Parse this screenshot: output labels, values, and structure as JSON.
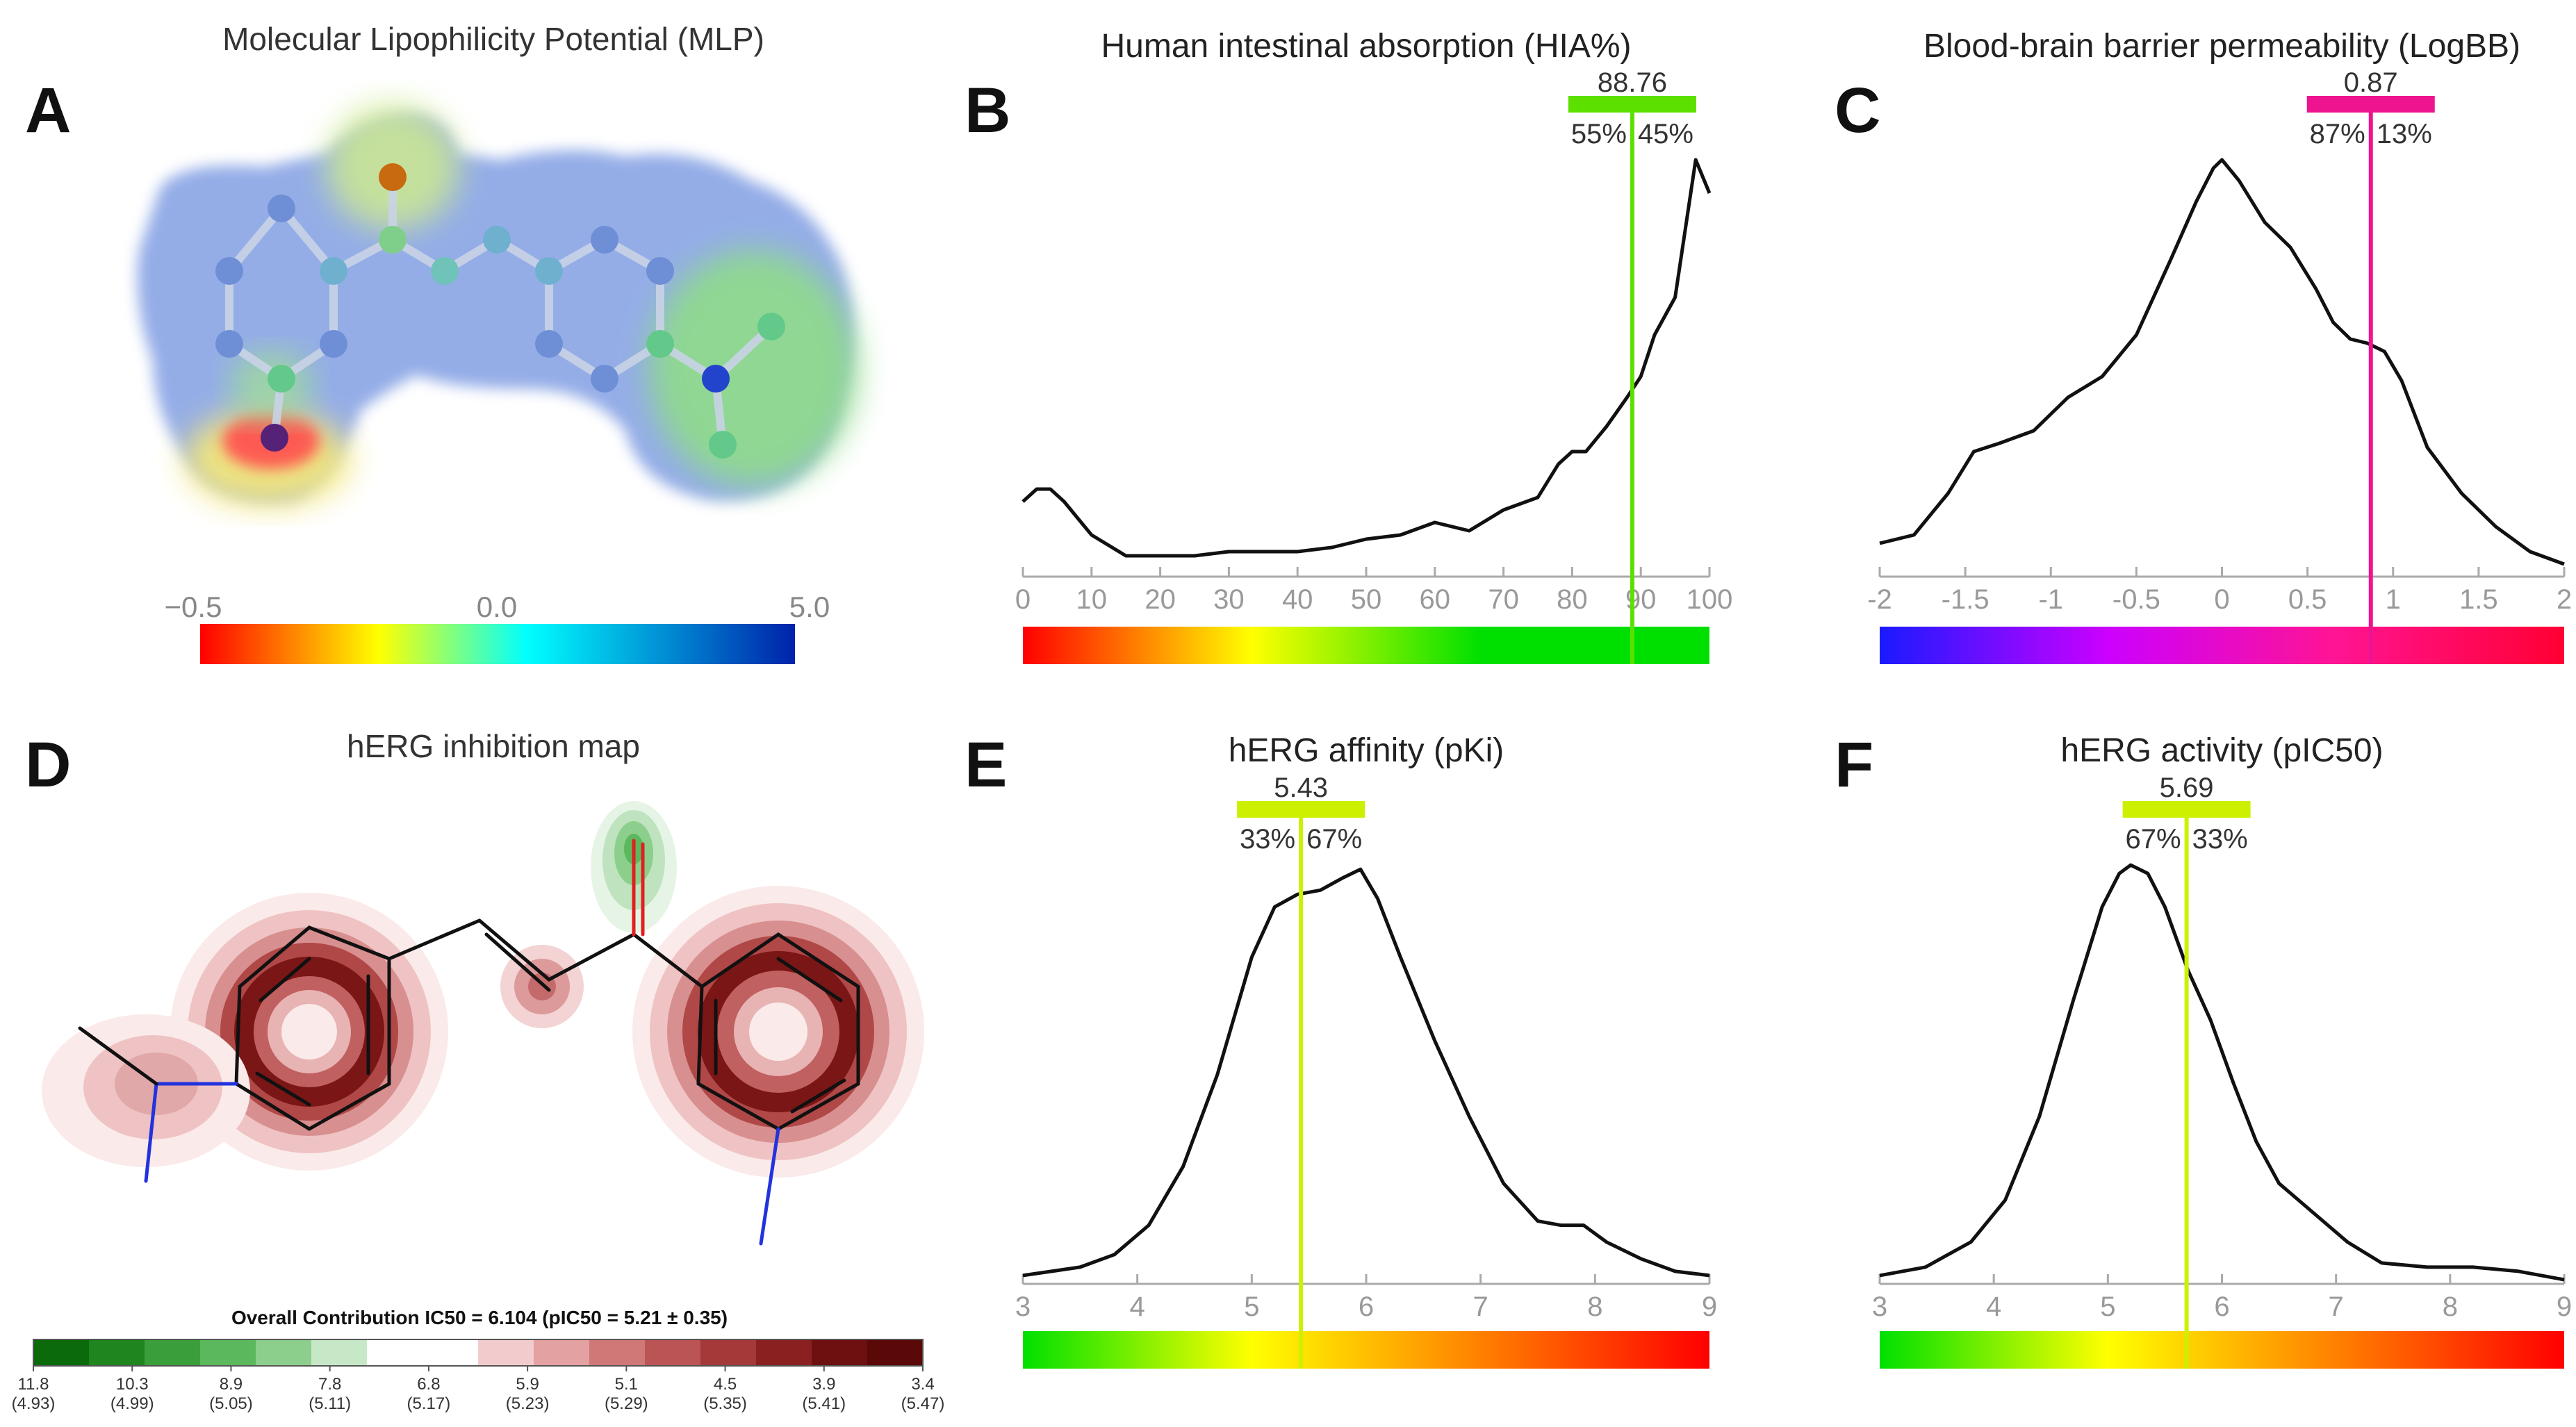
{
  "panel_a": {
    "letter": "A",
    "title": "Molecular Lipophilicity Potential (MLP)",
    "scale_labels": [
      "−0.5",
      "0.0",
      "5.0"
    ],
    "scale_colors": [
      "#ff0000",
      "#ffff00",
      "#00ffff",
      "#0000aa"
    ]
  },
  "panel_d": {
    "letter": "D",
    "title": "hERG inhibition map",
    "legend_title": "Overall Contribution IC50 = 6.104 (pIC50 = 5.21 ± 0.35)",
    "legend_ticks": [
      {
        "top": "11.8",
        "bottom": "(4.93)"
      },
      {
        "top": "10.3",
        "bottom": "(4.99)"
      },
      {
        "top": "8.9",
        "bottom": "(5.05)"
      },
      {
        "top": "7.8",
        "bottom": "(5.11)"
      },
      {
        "top": "6.8",
        "bottom": "(5.17)"
      },
      {
        "top": "5.9",
        "bottom": "(5.23)"
      },
      {
        "top": "5.1",
        "bottom": "(5.29)"
      },
      {
        "top": "4.5",
        "bottom": "(5.35)"
      },
      {
        "top": "3.9",
        "bottom": "(5.41)"
      },
      {
        "top": "3.4",
        "bottom": "(5.47)"
      }
    ],
    "legend_colors": [
      "#0b6b0b",
      "#1f851f",
      "#3a9e3a",
      "#5cb85c",
      "#8ccf8c",
      "#c7e8c7",
      "#ffffff",
      "#ffffff",
      "#f2cccc",
      "#e3a1a1",
      "#d07878",
      "#bb5454",
      "#a53838",
      "#8a2020",
      "#6e1010",
      "#5a0808"
    ]
  },
  "chart_data": [
    {
      "type": "line",
      "letter": "B",
      "title": "Human intestinal absorption (HIA%)",
      "xlabel": "",
      "ylabel": "",
      "xlim": [
        0,
        100
      ],
      "x_ticks": [
        "0",
        "10",
        "20",
        "30",
        "40",
        "50",
        "60",
        "70",
        "80",
        "90",
        "100"
      ],
      "x": [
        0,
        2,
        4,
        6,
        8,
        10,
        15,
        20,
        25,
        30,
        35,
        40,
        45,
        50,
        55,
        60,
        65,
        70,
        75,
        78,
        80,
        82,
        85,
        88,
        90,
        92,
        95,
        98,
        100
      ],
      "y": [
        0.18,
        0.21,
        0.21,
        0.18,
        0.14,
        0.1,
        0.05,
        0.05,
        0.05,
        0.06,
        0.06,
        0.06,
        0.07,
        0.09,
        0.1,
        0.13,
        0.11,
        0.16,
        0.19,
        0.27,
        0.3,
        0.3,
        0.36,
        0.43,
        0.48,
        0.58,
        0.67,
        1.0,
        0.92
      ],
      "ylim": [
        0,
        1.05
      ],
      "marker": {
        "value": "88.76",
        "x": 88.76,
        "left_pct": "55%",
        "right_pct": "45%",
        "color": "#5ce000"
      },
      "color_bar": [
        "#ff0000",
        "#ffff00",
        "#00e000",
        "#00e000"
      ]
    },
    {
      "type": "line",
      "letter": "C",
      "title": "Blood-brain barrier permeability (LogBB)",
      "xlabel": "",
      "ylabel": "",
      "xlim": [
        -2,
        2
      ],
      "x_ticks": [
        "-2",
        "-1.5",
        "-1",
        "-0.5",
        "0",
        "0.5",
        "1",
        "1.5",
        "2"
      ],
      "x": [
        -2,
        -1.8,
        -1.6,
        -1.45,
        -1.3,
        -1.1,
        -0.9,
        -0.7,
        -0.5,
        -0.3,
        -0.15,
        -0.05,
        0,
        0.1,
        0.25,
        0.4,
        0.55,
        0.65,
        0.75,
        0.85,
        0.95,
        1.05,
        1.2,
        1.4,
        1.6,
        1.8,
        2
      ],
      "y": [
        0.08,
        0.1,
        0.2,
        0.3,
        0.32,
        0.35,
        0.43,
        0.48,
        0.58,
        0.76,
        0.9,
        0.98,
        1.0,
        0.95,
        0.85,
        0.79,
        0.69,
        0.61,
        0.57,
        0.56,
        0.54,
        0.47,
        0.31,
        0.2,
        0.12,
        0.06,
        0.03
      ],
      "ylim": [
        0,
        1.05
      ],
      "marker": {
        "value": "0.87",
        "x": 0.87,
        "left_pct": "87%",
        "right_pct": "13%",
        "color": "#ee1490"
      },
      "color_bar": [
        "#1a1aff",
        "#cc00ff",
        "#ff1493",
        "#ff0033"
      ]
    },
    {
      "type": "line",
      "letter": "E",
      "title": "hERG affinity (pKi)",
      "xlabel": "",
      "ylabel": "",
      "xlim": [
        3,
        9
      ],
      "x_ticks": [
        "3",
        "4",
        "5",
        "6",
        "7",
        "8",
        "9"
      ],
      "x": [
        3,
        3.5,
        3.8,
        4.1,
        4.4,
        4.7,
        5.0,
        5.2,
        5.4,
        5.6,
        5.8,
        5.95,
        6.1,
        6.3,
        6.6,
        6.9,
        7.2,
        7.5,
        7.7,
        7.9,
        8.1,
        8.4,
        8.7,
        9
      ],
      "y": [
        0.02,
        0.04,
        0.07,
        0.14,
        0.28,
        0.5,
        0.78,
        0.9,
        0.93,
        0.94,
        0.97,
        0.99,
        0.92,
        0.78,
        0.58,
        0.4,
        0.24,
        0.15,
        0.14,
        0.14,
        0.1,
        0.06,
        0.03,
        0.02
      ],
      "ylim": [
        0,
        1.05
      ],
      "marker": {
        "value": "5.43",
        "x": 5.43,
        "left_pct": "33%",
        "right_pct": "67%",
        "color": "#ccf000"
      },
      "color_bar": [
        "#00e000",
        "#ffff00",
        "#ff8000",
        "#ff0000"
      ]
    },
    {
      "type": "line",
      "letter": "F",
      "title": "hERG activity (pIC50)",
      "xlabel": "",
      "ylabel": "",
      "xlim": [
        3,
        9
      ],
      "x_ticks": [
        "3",
        "4",
        "5",
        "6",
        "7",
        "8",
        "9"
      ],
      "x": [
        3,
        3.4,
        3.8,
        4.1,
        4.4,
        4.7,
        4.95,
        5.1,
        5.2,
        5.35,
        5.5,
        5.7,
        5.9,
        6.1,
        6.3,
        6.5,
        6.8,
        7.1,
        7.4,
        7.8,
        8.2,
        8.6,
        9
      ],
      "y": [
        0.02,
        0.04,
        0.1,
        0.2,
        0.4,
        0.68,
        0.9,
        0.98,
        1.0,
        0.98,
        0.9,
        0.75,
        0.63,
        0.48,
        0.34,
        0.24,
        0.17,
        0.1,
        0.05,
        0.04,
        0.04,
        0.03,
        0.01
      ],
      "ylim": [
        0,
        1.05
      ],
      "marker": {
        "value": "5.69",
        "x": 5.69,
        "left_pct": "67%",
        "right_pct": "33%",
        "color": "#ccf000"
      },
      "color_bar": [
        "#00e000",
        "#ffff00",
        "#ff8000",
        "#ff0000"
      ]
    }
  ]
}
